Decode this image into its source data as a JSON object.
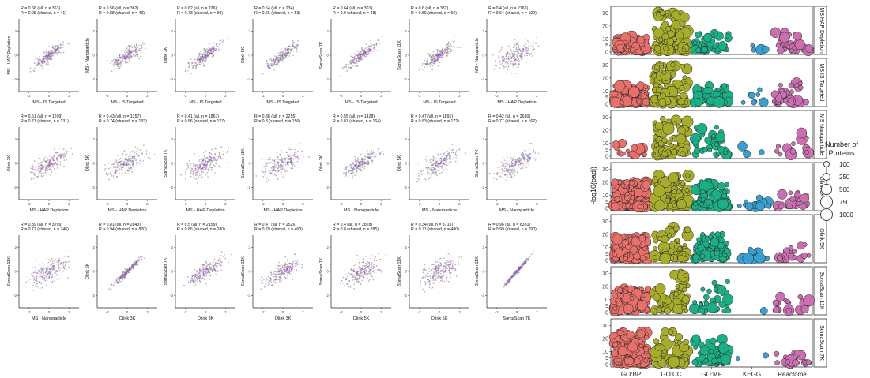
{
  "scatter_grid": {
    "rows": [
      [
        {
          "stats_all": "R = 0.66 (all, n = 363)",
          "stats_shared": "R = 0.95 (shared, n = 41)",
          "xlabel": "MS - IS Targeted",
          "ylabel": "MS - HAP Depletion"
        },
        {
          "stats_all": "R = 0.56 (all, n = 362)",
          "stats_shared": "R = 0.88 (shared, n = 43)",
          "xlabel": "MS - IS Targeted",
          "ylabel": "MS - Nanoparticle"
        },
        {
          "stats_all": "R = 0.62 (all, n = 226)",
          "stats_shared": "R = 0.73 (shared, n = 50)",
          "xlabel": "MS - IS Targeted",
          "ylabel": "Olink 3K"
        },
        {
          "stats_all": "R = 0.64 (all, n = 234)",
          "stats_shared": "R = 0.66 (shared, n = 53)",
          "xlabel": "MS - IS Targeted",
          "ylabel": "Olink 5K"
        },
        {
          "stats_all": "R = 0.64 (all, n = 301)",
          "stats_shared": "R = 0.9 (shared, n = 48)",
          "xlabel": "MS - IS Targeted",
          "ylabel": "SomaScan 7K"
        },
        {
          "stats_all": "R = 0.6 (all, n = 332)",
          "stats_shared": "R = 0.86 (shared, n = 66)",
          "xlabel": "MS - IS Targeted",
          "ylabel": "SomaScan 11K"
        },
        {
          "stats_all": "R = 0.4 (all, n = 2166)",
          "stats_shared": "R = 0.64 (shared, n = 109)",
          "xlabel": "MS - HAP Depletion",
          "ylabel": "MS - Nanoparticle"
        }
      ],
      [
        {
          "stats_all": "R = 0.51 (all, n = 1209)",
          "stats_shared": "R = 0.77 (shared, n = 131)",
          "xlabel": "MS - HAP Depletion",
          "ylabel": "Olink 3K"
        },
        {
          "stats_all": "R = 0.43 (all, n = 1357)",
          "stats_shared": "R = 0.74 (shared, n = 133)",
          "xlabel": "MS - HAP Depletion",
          "ylabel": "Olink 5K"
        },
        {
          "stats_all": "R = 0.41 (all, n = 1867)",
          "stats_shared": "R = 0.86 (shared, n = 127)",
          "xlabel": "MS - HAP Depletion",
          "ylabel": "SomaScan 7K"
        },
        {
          "stats_all": "R = 0.38 (all, n = 2255)",
          "stats_shared": "R = 0.8 (shared, n = 156)",
          "xlabel": "MS - HAP Depletion",
          "ylabel": "SomaScan 11K"
        },
        {
          "stats_all": "R = 0.55 (all, n = 1428)",
          "stats_shared": "R = 0.87 (shared, n = 164)",
          "xlabel": "MS - Nanoparticle",
          "ylabel": "Olink 3K"
        },
        {
          "stats_all": "R = 0.47 (all, n = 1891)",
          "stats_shared": "R = 0.83 (shared, n = 172)",
          "xlabel": "MS - Nanoparticle",
          "ylabel": "Olink 5K"
        },
        {
          "stats_all": "R = 0.42 (all, n = 2630)",
          "stats_shared": "R = 0.77 (shared, n = 162)",
          "xlabel": "MS - Nanoparticle",
          "ylabel": "SomaScan 7K"
        }
      ],
      [
        {
          "stats_all": "R = 0.39 (all, n = 3299)",
          "stats_shared": "R = 0.72 (shared, n = 246)",
          "xlabel": "MS - Nanoparticle",
          "ylabel": "SomaScan 11K"
        },
        {
          "stats_all": "R = 0.81 (all, n = 2843)",
          "stats_shared": "R = 0.94 (shared, n = 820)",
          "xlabel": "Olink 3K",
          "ylabel": "Olink 5K"
        },
        {
          "stats_all": "R = 0.5 (all, n = 2159)",
          "stats_shared": "R = 0.86 (shared, n = 280)",
          "xlabel": "Olink 3K",
          "ylabel": "SomaScan 7K"
        },
        {
          "stats_all": "R = 0.47 (all, n = 2526)",
          "stats_shared": "R = 0.79 (shared, n = 463)",
          "xlabel": "Olink 3K",
          "ylabel": "SomaScan 11K"
        },
        {
          "stats_all": "R = 0.4 (all, n = 2828)",
          "stats_shared": "R = 0.8 (shared, n = 285)",
          "xlabel": "Olink 5K",
          "ylabel": "SomaScan 7K"
        },
        {
          "stats_all": "R = 0.34 (all, n = 3715)",
          "stats_shared": "R = 0.71 (shared, n = 480)",
          "xlabel": "Olink 5K",
          "ylabel": "SomaScan 11K"
        },
        {
          "stats_all": "R = 0.96 (all, n = 6381)",
          "stats_shared": "R = 0.99 (shared, n = 790)",
          "xlabel": "SomaScan 7K",
          "ylabel": "SomaScan 11K"
        }
      ]
    ],
    "tick_labels": [
      "-2",
      "0",
      "2"
    ],
    "colors": {
      "all": "#7f7f7f",
      "shared": "#9b3fd0"
    }
  },
  "chart_data": [
    {
      "type": "scatter",
      "title": "",
      "panels": 21,
      "xlim": [
        -3,
        3
      ],
      "ylim": [
        -3,
        3
      ],
      "x_ticks": [
        -2,
        0,
        2
      ],
      "y_ticks": [
        -2,
        0,
        2
      ],
      "grid": false
    },
    {
      "type": "scatter",
      "title": "",
      "categories": [
        "GO:BP",
        "GO:CC",
        "GO:MF",
        "KEGG",
        "Reactome"
      ],
      "category_colors": [
        "#e8706b",
        "#a7ad2a",
        "#1cae85",
        "#3a9fd0",
        "#cc6fb0"
      ],
      "facets": [
        "MS HAP Depletion",
        "MS IS Targeted",
        "MS Nanoparticle",
        "Olink 3K",
        "Olink 5K",
        "SomaScan 11K",
        "SomaScan 7K"
      ],
      "ylabel": "-log10(padj)",
      "ylim": [
        0,
        32
      ],
      "y_ticks": [
        0,
        5,
        10,
        20,
        30
      ],
      "grid": false,
      "legend": {
        "title": "Number of Proteins",
        "placement": "right",
        "values": [
          100,
          250,
          500,
          750,
          1000
        ]
      },
      "facet_point_counts": [
        [
          150,
          120,
          45,
          5,
          35
        ],
        [
          180,
          110,
          50,
          8,
          40
        ],
        [
          18,
          90,
          35,
          3,
          15
        ],
        [
          260,
          150,
          90,
          15,
          30
        ],
        [
          240,
          60,
          80,
          12,
          25
        ],
        [
          160,
          60,
          35,
          1,
          18
        ],
        [
          220,
          65,
          60,
          2,
          25
        ]
      ],
      "facet_max_padj": [
        [
          12,
          30,
          14,
          5,
          15
        ],
        [
          14,
          30,
          14,
          12,
          16
        ],
        [
          12,
          30,
          22,
          8,
          18
        ],
        [
          20,
          25,
          20,
          8,
          12
        ],
        [
          18,
          25,
          20,
          10,
          12
        ],
        [
          18,
          32,
          25,
          8,
          12
        ],
        [
          25,
          25,
          20,
          7,
          10
        ]
      ]
    }
  ]
}
